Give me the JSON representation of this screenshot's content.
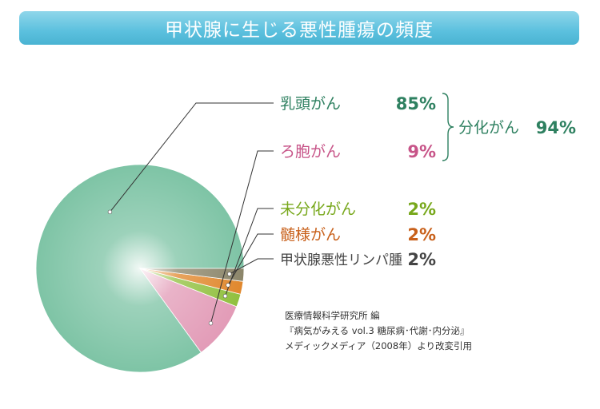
{
  "title": "甲状腺に生じる悪性腫瘍の頻度",
  "chart_data": {
    "type": "pie",
    "title": "甲状腺に生じる悪性腫瘍の頻度",
    "slices": [
      {
        "label": "乳頭がん",
        "value": 85,
        "value_label": "85%",
        "color": "#7cc3a4"
      },
      {
        "label": "ろ胞がん",
        "value": 9,
        "value_label": "9%",
        "color": "#e29ab6"
      },
      {
        "label": "未分化がん",
        "value": 2,
        "value_label": "2%",
        "color": "#8fbf3c"
      },
      {
        "label": "髄様がん",
        "value": 2,
        "value_label": "2%",
        "color": "#e0862a"
      },
      {
        "label": "甲状腺悪性リンパ腫",
        "value": 2,
        "value_label": "2%",
        "color": "#8a8468"
      }
    ],
    "group": {
      "label": "分化がん",
      "value": 94,
      "value_label": "94%",
      "members": [
        "乳頭がん",
        "ろ胞がん"
      ]
    }
  },
  "label_colors": [
    "#2e8060",
    "#c75488",
    "#78a81c",
    "#c8601a",
    "#444444"
  ],
  "source": {
    "line1": "医療情報科学研究所 編",
    "line2": "『病気がみえる vol.3 糖尿病･代謝･内分泌』",
    "line3": "メディックメディア（2008年）より改変引用"
  }
}
